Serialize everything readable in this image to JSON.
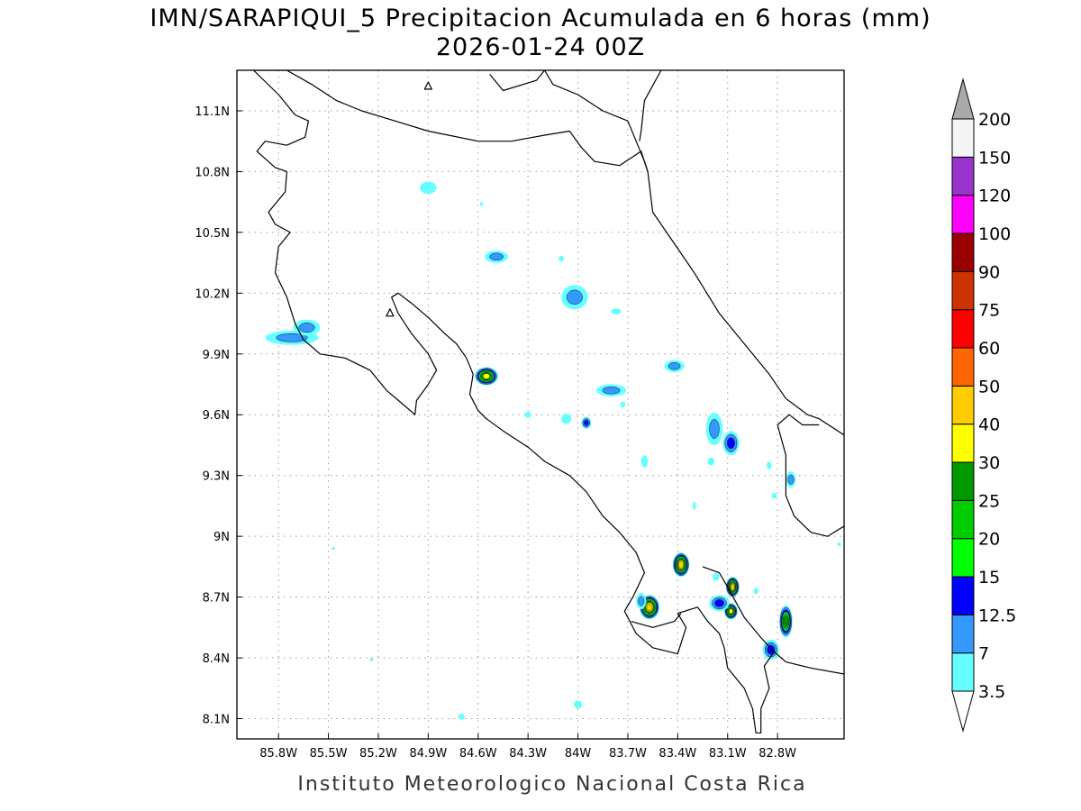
{
  "title": {
    "line1": "IMN/SARAPIQUI_5 Precipitacion Acumulada en 6 horas (mm)",
    "line2": "2026-01-24 00Z"
  },
  "footer": "Instituto Meteorologico Nacional Costa Rica",
  "map": {
    "lon_range": [
      -86.05,
      -82.4
    ],
    "lat_range": [
      8.0,
      11.3
    ],
    "lon_ticks": [
      {
        "value": -85.8,
        "label": "85.8W"
      },
      {
        "value": -85.5,
        "label": "85.5W"
      },
      {
        "value": -85.2,
        "label": "85.2W"
      },
      {
        "value": -84.9,
        "label": "84.9W"
      },
      {
        "value": -84.6,
        "label": "84.6W"
      },
      {
        "value": -84.3,
        "label": "84.3W"
      },
      {
        "value": -84.0,
        "label": "84W"
      },
      {
        "value": -83.7,
        "label": "83.7W"
      },
      {
        "value": -83.4,
        "label": "83.4W"
      },
      {
        "value": -83.1,
        "label": "83.1W"
      },
      {
        "value": -82.8,
        "label": "82.8W"
      }
    ],
    "lat_ticks": [
      {
        "value": 8.1,
        "label": "8.1N"
      },
      {
        "value": 8.4,
        "label": "8.4N"
      },
      {
        "value": 8.7,
        "label": "8.7N"
      },
      {
        "value": 9.0,
        "label": "9N"
      },
      {
        "value": 9.3,
        "label": "9.3N"
      },
      {
        "value": 9.6,
        "label": "9.6N"
      },
      {
        "value": 9.9,
        "label": "9.9N"
      },
      {
        "value": 10.2,
        "label": "10.2N"
      },
      {
        "value": 10.5,
        "label": "10.5N"
      },
      {
        "value": 10.8,
        "label": "10.8N"
      },
      {
        "value": 11.1,
        "label": "11.1N"
      }
    ],
    "coastlines": [
      [
        [
          -85.95,
          11.3
        ],
        [
          -85.8,
          11.18
        ],
        [
          -85.7,
          11.08
        ],
        [
          -85.62,
          11.05
        ],
        [
          -85.64,
          10.97
        ],
        [
          -85.75,
          10.93
        ],
        [
          -85.88,
          10.95
        ],
        [
          -85.93,
          10.9
        ],
        [
          -85.82,
          10.82
        ],
        [
          -85.75,
          10.8
        ],
        [
          -85.76,
          10.7
        ],
        [
          -85.86,
          10.6
        ],
        [
          -85.82,
          10.54
        ],
        [
          -85.73,
          10.5
        ],
        [
          -85.8,
          10.43
        ],
        [
          -85.82,
          10.3
        ],
        [
          -85.75,
          10.18
        ],
        [
          -85.7,
          10.05
        ],
        [
          -85.65,
          9.97
        ],
        [
          -85.55,
          9.9
        ],
        [
          -85.4,
          9.88
        ],
        [
          -85.25,
          9.82
        ],
        [
          -85.15,
          9.72
        ],
        [
          -85.05,
          9.65
        ],
        [
          -84.98,
          9.6
        ],
        [
          -84.97,
          9.67
        ],
        [
          -84.9,
          9.75
        ],
        [
          -84.85,
          9.82
        ],
        [
          -84.9,
          9.9
        ],
        [
          -85.0,
          10.0
        ],
        [
          -85.08,
          10.1
        ],
        [
          -85.12,
          10.18
        ],
        [
          -85.08,
          10.2
        ],
        [
          -85.0,
          10.15
        ],
        [
          -84.9,
          10.08
        ],
        [
          -84.8,
          10.0
        ],
        [
          -84.73,
          9.95
        ],
        [
          -84.67,
          9.88
        ],
        [
          -84.63,
          9.8
        ],
        [
          -84.65,
          9.7
        ],
        [
          -84.6,
          9.62
        ],
        [
          -84.55,
          9.58
        ],
        [
          -84.45,
          9.52
        ],
        [
          -84.3,
          9.44
        ],
        [
          -84.2,
          9.37
        ],
        [
          -84.05,
          9.3
        ],
        [
          -83.95,
          9.22
        ],
        [
          -83.85,
          9.1
        ],
        [
          -83.75,
          9.02
        ],
        [
          -83.65,
          8.92
        ],
        [
          -83.6,
          8.82
        ],
        [
          -83.67,
          8.7
        ],
        [
          -83.72,
          8.63
        ],
        [
          -83.65,
          8.52
        ],
        [
          -83.55,
          8.45
        ],
        [
          -83.4,
          8.42
        ],
        [
          -83.35,
          8.55
        ],
        [
          -83.4,
          8.62
        ],
        [
          -83.28,
          8.65
        ],
        [
          -83.22,
          8.58
        ],
        [
          -83.15,
          8.52
        ],
        [
          -83.12,
          8.45
        ],
        [
          -83.1,
          8.35
        ],
        [
          -83.0,
          8.25
        ],
        [
          -82.95,
          8.15
        ],
        [
          -82.93,
          8.03
        ],
        [
          -82.9,
          8.03
        ],
        [
          -82.9,
          8.15
        ],
        [
          -82.85,
          8.25
        ],
        [
          -82.88,
          8.36
        ],
        [
          -82.82,
          8.43
        ],
        [
          -82.75,
          8.38
        ],
        [
          -82.6,
          8.35
        ],
        [
          -82.4,
          8.32
        ]
      ],
      [
        [
          -84.2,
          11.3
        ],
        [
          -84.15,
          11.23
        ],
        [
          -84.0,
          11.18
        ],
        [
          -83.85,
          11.1
        ],
        [
          -83.7,
          11.05
        ],
        [
          -83.65,
          10.95
        ],
        [
          -83.6,
          10.85
        ],
        [
          -83.58,
          10.8
        ],
        [
          -83.55,
          10.6
        ],
        [
          -83.45,
          10.48
        ],
        [
          -83.3,
          10.3
        ],
        [
          -83.15,
          10.1
        ],
        [
          -83.0,
          9.95
        ],
        [
          -82.85,
          9.8
        ],
        [
          -82.75,
          9.68
        ],
        [
          -82.62,
          9.6
        ],
        [
          -82.55,
          9.58
        ],
        [
          -82.4,
          9.5
        ]
      ],
      [
        [
          -85.95,
          11.3
        ],
        [
          -85.75,
          11.3
        ],
        [
          -85.6,
          11.23
        ],
        [
          -85.45,
          11.15
        ],
        [
          -85.3,
          11.1
        ],
        [
          -85.1,
          11.05
        ],
        [
          -84.9,
          11.0
        ],
        [
          -84.6,
          10.95
        ],
        [
          -84.4,
          10.95
        ],
        [
          -84.2,
          10.98
        ],
        [
          -84.05,
          11.0
        ],
        [
          -83.98,
          10.92
        ],
        [
          -83.9,
          10.85
        ],
        [
          -83.75,
          10.83
        ],
        [
          -83.62,
          10.9
        ],
        [
          -83.58,
          10.8
        ]
      ],
      [
        [
          -83.5,
          11.3
        ],
        [
          -83.6,
          11.15
        ],
        [
          -83.62,
          11.0
        ],
        [
          -83.63,
          10.95
        ]
      ],
      [
        [
          -82.4,
          9.05
        ],
        [
          -82.5,
          9.0
        ],
        [
          -82.6,
          9.02
        ],
        [
          -82.7,
          9.1
        ],
        [
          -82.75,
          9.2
        ],
        [
          -82.75,
          9.4
        ],
        [
          -82.8,
          9.55
        ],
        [
          -82.73,
          9.6
        ],
        [
          -82.65,
          9.55
        ],
        [
          -82.55,
          9.55
        ]
      ],
      [
        [
          -83.25,
          8.85
        ],
        [
          -83.15,
          8.82
        ],
        [
          -83.1,
          8.75
        ],
        [
          -83.0,
          8.6
        ],
        [
          -82.9,
          8.5
        ],
        [
          -82.82,
          8.43
        ]
      ],
      [
        [
          -83.68,
          8.58
        ],
        [
          -83.55,
          8.55
        ],
        [
          -83.42,
          8.58
        ],
        [
          -83.38,
          8.62
        ]
      ],
      [
        [
          -84.53,
          11.28
        ],
        [
          -84.45,
          11.2
        ],
        [
          -84.25,
          11.25
        ],
        [
          -84.2,
          11.3
        ]
      ]
    ],
    "precip_cells": [
      {
        "lon": -84.55,
        "lat": 9.79,
        "rx": 0.07,
        "ry": 0.045,
        "peak": 30
      },
      {
        "lon": -84.49,
        "lat": 10.38,
        "rx": 0.07,
        "ry": 0.03,
        "peak": 7
      },
      {
        "lon": -84.9,
        "lat": 10.72,
        "rx": 0.05,
        "ry": 0.03,
        "peak": 3.5
      },
      {
        "lon": -85.72,
        "lat": 9.98,
        "rx": 0.16,
        "ry": 0.035,
        "peak": 7
      },
      {
        "lon": -85.63,
        "lat": 10.03,
        "rx": 0.08,
        "ry": 0.04,
        "peak": 7
      },
      {
        "lon": -84.02,
        "lat": 10.18,
        "rx": 0.08,
        "ry": 0.06,
        "peak": 7
      },
      {
        "lon": -83.8,
        "lat": 9.72,
        "rx": 0.09,
        "ry": 0.03,
        "peak": 7
      },
      {
        "lon": -83.42,
        "lat": 9.84,
        "rx": 0.06,
        "ry": 0.03,
        "peak": 7
      },
      {
        "lon": -83.95,
        "lat": 9.56,
        "rx": 0.03,
        "ry": 0.03,
        "peak": 12.5
      },
      {
        "lon": -84.07,
        "lat": 9.58,
        "rx": 0.03,
        "ry": 0.025,
        "peak": 3.5
      },
      {
        "lon": -83.18,
        "lat": 9.53,
        "rx": 0.05,
        "ry": 0.08,
        "peak": 7
      },
      {
        "lon": -83.08,
        "lat": 9.46,
        "rx": 0.05,
        "ry": 0.06,
        "peak": 12.5
      },
      {
        "lon": -82.72,
        "lat": 9.28,
        "rx": 0.03,
        "ry": 0.04,
        "peak": 7
      },
      {
        "lon": -83.38,
        "lat": 8.86,
        "rx": 0.05,
        "ry": 0.06,
        "peak": 40
      },
      {
        "lon": -83.57,
        "lat": 8.65,
        "rx": 0.06,
        "ry": 0.06,
        "peak": 40
      },
      {
        "lon": -83.07,
        "lat": 8.75,
        "rx": 0.04,
        "ry": 0.05,
        "peak": 40
      },
      {
        "lon": -83.08,
        "lat": 8.63,
        "rx": 0.04,
        "ry": 0.04,
        "peak": 30
      },
      {
        "lon": -83.15,
        "lat": 8.67,
        "rx": 0.06,
        "ry": 0.04,
        "peak": 12.5
      },
      {
        "lon": -82.75,
        "lat": 8.58,
        "rx": 0.04,
        "ry": 0.08,
        "peak": 25
      },
      {
        "lon": -82.84,
        "lat": 8.44,
        "rx": 0.05,
        "ry": 0.05,
        "peak": 12.5
      },
      {
        "lon": -83.62,
        "lat": 8.68,
        "rx": 0.03,
        "ry": 0.04,
        "peak": 7
      },
      {
        "lon": -84.0,
        "lat": 8.17,
        "rx": 0.025,
        "ry": 0.02,
        "peak": 3.5
      },
      {
        "lon": -84.7,
        "lat": 8.11,
        "rx": 0.02,
        "ry": 0.015,
        "peak": 3.5
      },
      {
        "lon": -83.2,
        "lat": 9.37,
        "rx": 0.02,
        "ry": 0.02,
        "peak": 3.5
      },
      {
        "lon": -83.6,
        "lat": 9.37,
        "rx": 0.02,
        "ry": 0.03,
        "peak": 3.5
      },
      {
        "lon": -83.77,
        "lat": 10.11,
        "rx": 0.03,
        "ry": 0.015,
        "peak": 3.5
      },
      {
        "lon": -83.73,
        "lat": 9.65,
        "rx": 0.015,
        "ry": 0.015,
        "peak": 3.5
      },
      {
        "lon": -82.85,
        "lat": 9.35,
        "rx": 0.015,
        "ry": 0.02,
        "peak": 3.5
      },
      {
        "lon": -84.3,
        "lat": 9.6,
        "rx": 0.02,
        "ry": 0.015,
        "peak": 3.5
      },
      {
        "lon": -84.58,
        "lat": 10.64,
        "rx": 0.01,
        "ry": 0.01,
        "peak": 3.5
      },
      {
        "lon": -84.1,
        "lat": 10.37,
        "rx": 0.015,
        "ry": 0.015,
        "peak": 3.5
      },
      {
        "lon": -83.3,
        "lat": 9.15,
        "rx": 0.01,
        "ry": 0.02,
        "peak": 3.5
      },
      {
        "lon": -83.17,
        "lat": 8.8,
        "rx": 0.02,
        "ry": 0.02,
        "peak": 3.5
      },
      {
        "lon": -82.93,
        "lat": 8.73,
        "rx": 0.015,
        "ry": 0.015,
        "peak": 3.5
      },
      {
        "lon": -82.43,
        "lat": 8.96,
        "rx": 0.01,
        "ry": 0.01,
        "peak": 3.5
      },
      {
        "lon": -85.47,
        "lat": 8.94,
        "rx": 0.01,
        "ry": 0.008,
        "peak": 3.5
      },
      {
        "lon": -85.24,
        "lat": 8.39,
        "rx": 0.01,
        "ry": 0.008,
        "peak": 3.5
      },
      {
        "lon": -82.82,
        "lat": 9.2,
        "rx": 0.015,
        "ry": 0.015,
        "peak": 3.5
      }
    ]
  },
  "colorbar": {
    "levels": [
      {
        "value": "3.5",
        "label": "3.5",
        "color": "#66ffff"
      },
      {
        "value": "7",
        "label": "7",
        "color": "#3399ff"
      },
      {
        "value": "12.5",
        "label": "12.5",
        "color": "#0000ff"
      },
      {
        "value": "15",
        "label": "15",
        "color": "#00ff00"
      },
      {
        "value": "20",
        "label": "20",
        "color": "#00cc00"
      },
      {
        "value": "25",
        "label": "25",
        "color": "#009900"
      },
      {
        "value": "30",
        "label": "30",
        "color": "#ffff00"
      },
      {
        "value": "40",
        "label": "40",
        "color": "#ffcc00"
      },
      {
        "value": "50",
        "label": "50",
        "color": "#ff6600"
      },
      {
        "value": "60",
        "label": "60",
        "color": "#ff0000"
      },
      {
        "value": "75",
        "label": "75",
        "color": "#cc3300"
      },
      {
        "value": "90",
        "label": "90",
        "color": "#990000"
      },
      {
        "value": "100",
        "label": "100",
        "color": "#ff00ff"
      },
      {
        "value": "120",
        "label": "120",
        "color": "#9933cc"
      },
      {
        "value": "150",
        "label": "150",
        "color": "#f5f5f5"
      },
      {
        "value": "200",
        "label": "200",
        "color": "#aaaaaa"
      }
    ]
  }
}
